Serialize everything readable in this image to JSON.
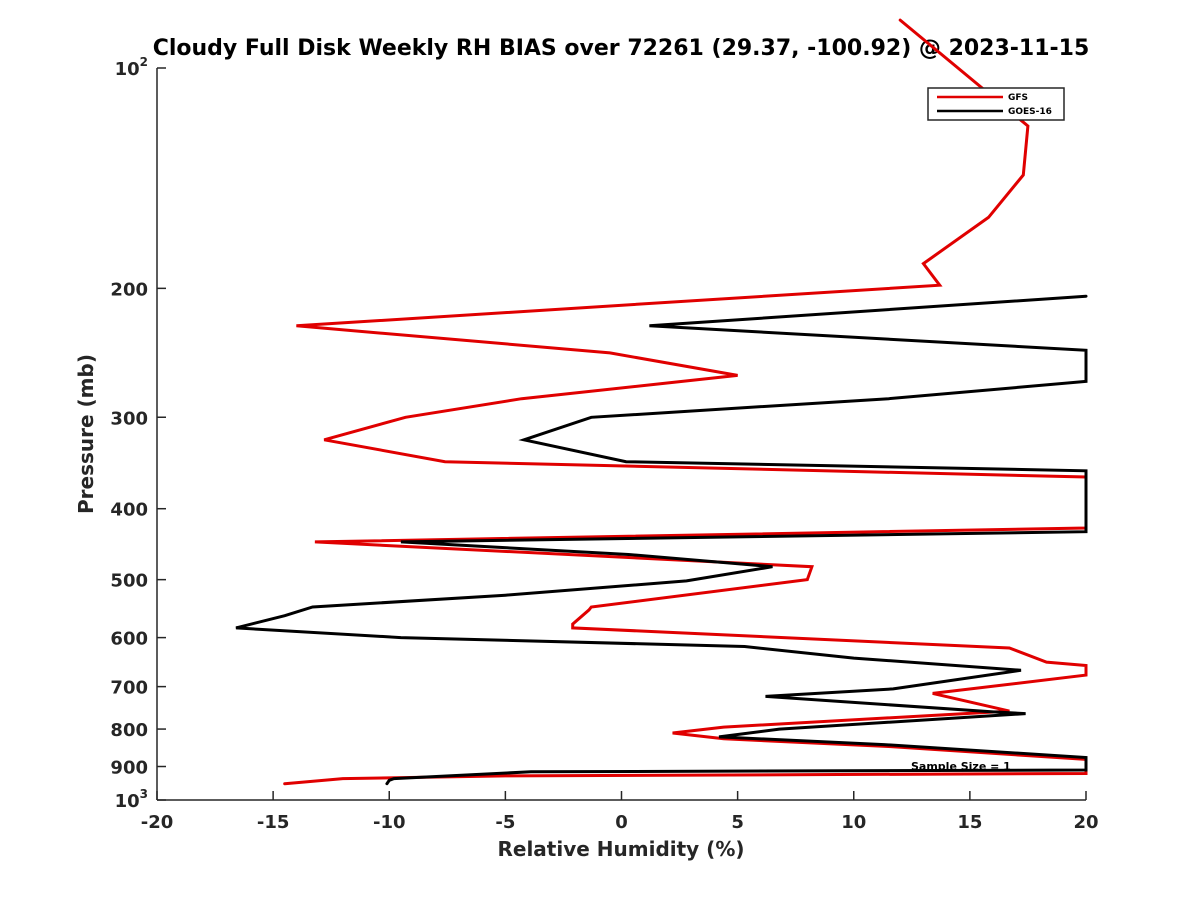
{
  "chart_data": {
    "type": "line",
    "title": "Cloudy Full Disk Weekly RH BIAS over 72261 (29.37, -100.92) @ 2023-11-15",
    "xlabel": "Relative Humidity (%)",
    "ylabel": "Pressure (mb)",
    "xlim": [
      -20,
      20
    ],
    "ylim": [
      100,
      1000
    ],
    "y_scale": "log",
    "y_reversed": true,
    "x_ticks": [
      -20,
      -15,
      -10,
      -5,
      0,
      5,
      10,
      15,
      20
    ],
    "x_tick_labels": [
      "-20",
      "-15",
      "-10",
      "-5",
      "0",
      "5",
      "10",
      "15",
      "20"
    ],
    "y_ticks": [
      100,
      200,
      300,
      400,
      500,
      600,
      700,
      800,
      900,
      1000
    ],
    "y_tick_labels": [
      {
        "base": "10",
        "exp": "2"
      },
      {
        "base": "200",
        "exp": ""
      },
      {
        "base": "300",
        "exp": ""
      },
      {
        "base": "400",
        "exp": ""
      },
      {
        "base": "500",
        "exp": ""
      },
      {
        "base": "600",
        "exp": ""
      },
      {
        "base": "700",
        "exp": ""
      },
      {
        "base": "800",
        "exp": ""
      },
      {
        "base": "900",
        "exp": ""
      },
      {
        "base": "10",
        "exp": "3"
      }
    ],
    "grid": false,
    "legend": "top-right",
    "annotation": "Sample Size = 1",
    "series": [
      {
        "name": "GFS",
        "color": "#e00000",
        "points": [
          [
            12.0,
            86
          ],
          [
            17.5,
            120
          ],
          [
            17.3,
            140
          ],
          [
            15.8,
            160
          ],
          [
            13.0,
            185
          ],
          [
            13.7,
            198
          ],
          [
            -14.0,
            225
          ],
          [
            -0.5,
            245
          ],
          [
            5.0,
            263
          ],
          [
            -4.3,
            283
          ],
          [
            -9.3,
            300
          ],
          [
            -12.8,
            322
          ],
          [
            -7.6,
            345
          ],
          [
            20.0,
            362
          ],
          [
            20.0,
            425
          ],
          [
            -13.2,
            444
          ],
          [
            8.2,
            480
          ],
          [
            8.0,
            500
          ],
          [
            -1.3,
            545
          ],
          [
            -1.4,
            550
          ],
          [
            -2.1,
            575
          ],
          [
            -2.1,
            582
          ],
          [
            16.7,
            620
          ],
          [
            18.3,
            648
          ],
          [
            20.0,
            655
          ],
          [
            20.0,
            675
          ],
          [
            13.4,
            715
          ],
          [
            16.7,
            756
          ],
          [
            4.4,
            795
          ],
          [
            2.2,
            810
          ],
          [
            4.4,
            825
          ],
          [
            11.5,
            845
          ],
          [
            20.0,
            880
          ],
          [
            20.0,
            920
          ],
          [
            -5.0,
            927
          ],
          [
            -12.0,
            935
          ],
          [
            -14.5,
            950
          ]
        ]
      },
      {
        "name": "GOES-16",
        "color": "#000000",
        "points": [
          [
            20.0,
            205
          ],
          [
            1.2,
            225
          ],
          [
            20.0,
            243
          ],
          [
            20.0,
            268
          ],
          [
            11.5,
            283
          ],
          [
            -1.3,
            300
          ],
          [
            -4.2,
            322
          ],
          [
            0.2,
            345
          ],
          [
            20.0,
            355
          ],
          [
            20.0,
            430
          ],
          [
            -9.5,
            444
          ],
          [
            0.3,
            462
          ],
          [
            6.5,
            480
          ],
          [
            2.8,
            502
          ],
          [
            -5.0,
            525
          ],
          [
            -13.3,
            545
          ],
          [
            -14.5,
            560
          ],
          [
            -16.6,
            582
          ],
          [
            -9.5,
            600
          ],
          [
            5.3,
            617
          ],
          [
            10.0,
            640
          ],
          [
            17.2,
            665
          ],
          [
            11.7,
            705
          ],
          [
            6.2,
            722
          ],
          [
            16.0,
            758
          ],
          [
            17.4,
            762
          ],
          [
            6.8,
            800
          ],
          [
            4.2,
            820
          ],
          [
            11.3,
            840
          ],
          [
            20.0,
            875
          ],
          [
            20.0,
            910
          ],
          [
            -3.9,
            915
          ],
          [
            -9.8,
            935
          ],
          [
            -10.0,
            940
          ],
          [
            -10.1,
            950
          ]
        ]
      }
    ]
  }
}
